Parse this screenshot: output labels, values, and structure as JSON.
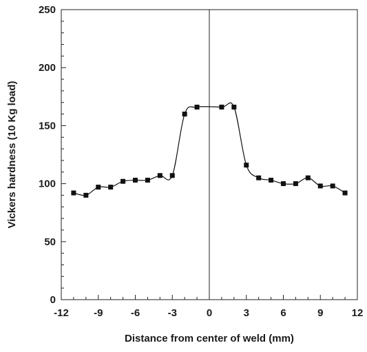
{
  "chart_data": {
    "type": "line",
    "title": "",
    "xlabel": "Distance from center of weld (mm)",
    "ylabel": "Vickers hardness (10 Kg load)",
    "xlim": [
      -12,
      12
    ],
    "ylim": [
      0,
      250
    ],
    "x_ticks": [
      "-12",
      "-9",
      "-6",
      "-3",
      "0",
      "3",
      "6",
      "9",
      "12"
    ],
    "y_ticks": [
      "0",
      "50",
      "100",
      "150",
      "200",
      "250"
    ],
    "grid": false,
    "legend": "none",
    "reference_line": {
      "x": 0
    },
    "series": [
      {
        "marker": "square",
        "color": "#111111",
        "smooth": true,
        "points": [
          {
            "x": -11,
            "y": 92
          },
          {
            "x": -10,
            "y": 90
          },
          {
            "x": -9,
            "y": 97
          },
          {
            "x": -8,
            "y": 97
          },
          {
            "x": -7,
            "y": 102
          },
          {
            "x": -6,
            "y": 103
          },
          {
            "x": -5,
            "y": 103
          },
          {
            "x": -4,
            "y": 107
          },
          {
            "x": -3,
            "y": 107
          },
          {
            "x": -2,
            "y": 160
          },
          {
            "x": -1,
            "y": 166
          },
          {
            "x": 1,
            "y": 166
          },
          {
            "x": 2,
            "y": 166
          },
          {
            "x": 3,
            "y": 116
          },
          {
            "x": 4,
            "y": 105
          },
          {
            "x": 5,
            "y": 103
          },
          {
            "x": 6,
            "y": 100
          },
          {
            "x": 7,
            "y": 100
          },
          {
            "x": 8,
            "y": 105
          },
          {
            "x": 9,
            "y": 98
          },
          {
            "x": 10,
            "y": 98
          },
          {
            "x": 11,
            "y": 92
          }
        ]
      }
    ]
  }
}
